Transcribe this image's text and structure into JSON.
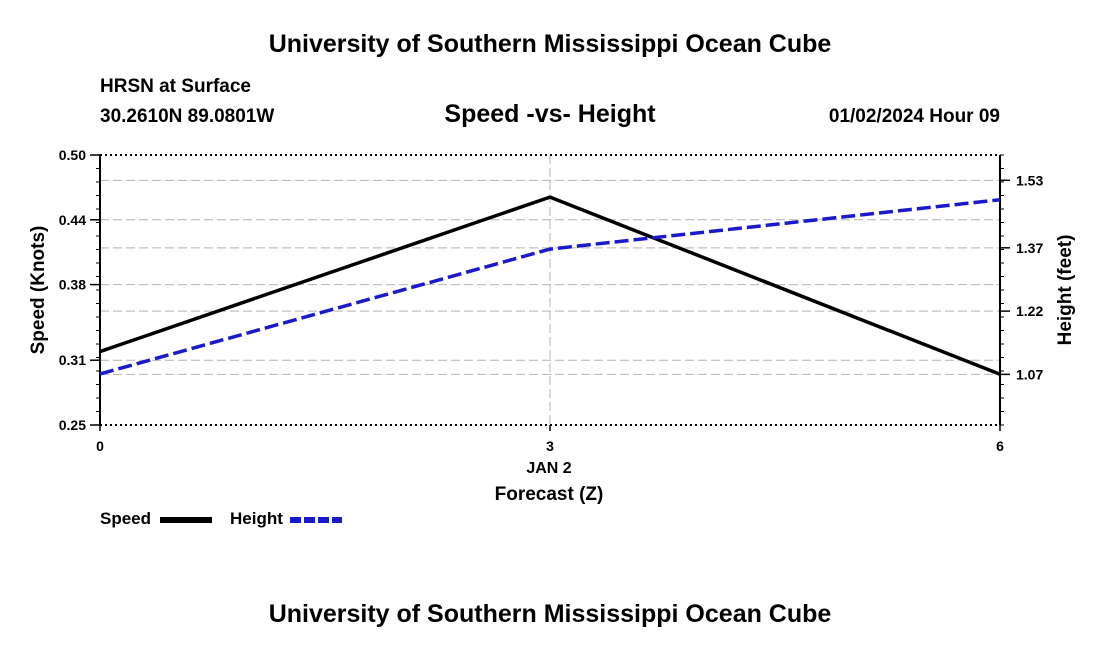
{
  "header": {
    "title": "University of Southern Mississippi Ocean Cube",
    "station": "HRSN at Surface",
    "coords": "30.2610N  89.0801W",
    "datetime": "01/02/2024 Hour 09"
  },
  "footer": {
    "title": "University of Southern Mississippi Ocean Cube"
  },
  "legend": {
    "items": [
      {
        "label": "Speed",
        "color": "#000000",
        "style": "solid"
      },
      {
        "label": "Height",
        "color": "#1a1acc",
        "style": "dashed"
      }
    ]
  },
  "chart_data": {
    "type": "line",
    "title": "Speed -vs- Height",
    "xlabel": "Forecast (Z)",
    "xsublabel": "JAN 2",
    "ylabel": "Speed (Knots)",
    "y2label": "Height (feet)",
    "grid": true,
    "x": [
      0,
      3,
      6
    ],
    "xticks": [
      "0",
      "3",
      "6"
    ],
    "xlim": [
      0,
      6
    ],
    "ylim": [
      0.25,
      0.5
    ],
    "yticks": [
      "0.50",
      "0.44",
      "0.38",
      "0.31",
      "0.25"
    ],
    "ytick_values": [
      0.5,
      0.44,
      0.38,
      0.31,
      0.25
    ],
    "y2lim": [
      0.95,
      1.59
    ],
    "y2ticks": [
      "1.53",
      "1.37",
      "1.22",
      "1.07"
    ],
    "y2tick_values": [
      1.53,
      1.37,
      1.22,
      1.07
    ],
    "series": [
      {
        "name": "Speed",
        "axis": "left",
        "color": "#000000",
        "values": [
          0.318,
          0.461,
          0.297
        ]
      },
      {
        "name": "Height",
        "axis": "right",
        "color": "#1a1acc",
        "values": [
          1.071,
          1.367,
          1.484
        ]
      }
    ]
  }
}
